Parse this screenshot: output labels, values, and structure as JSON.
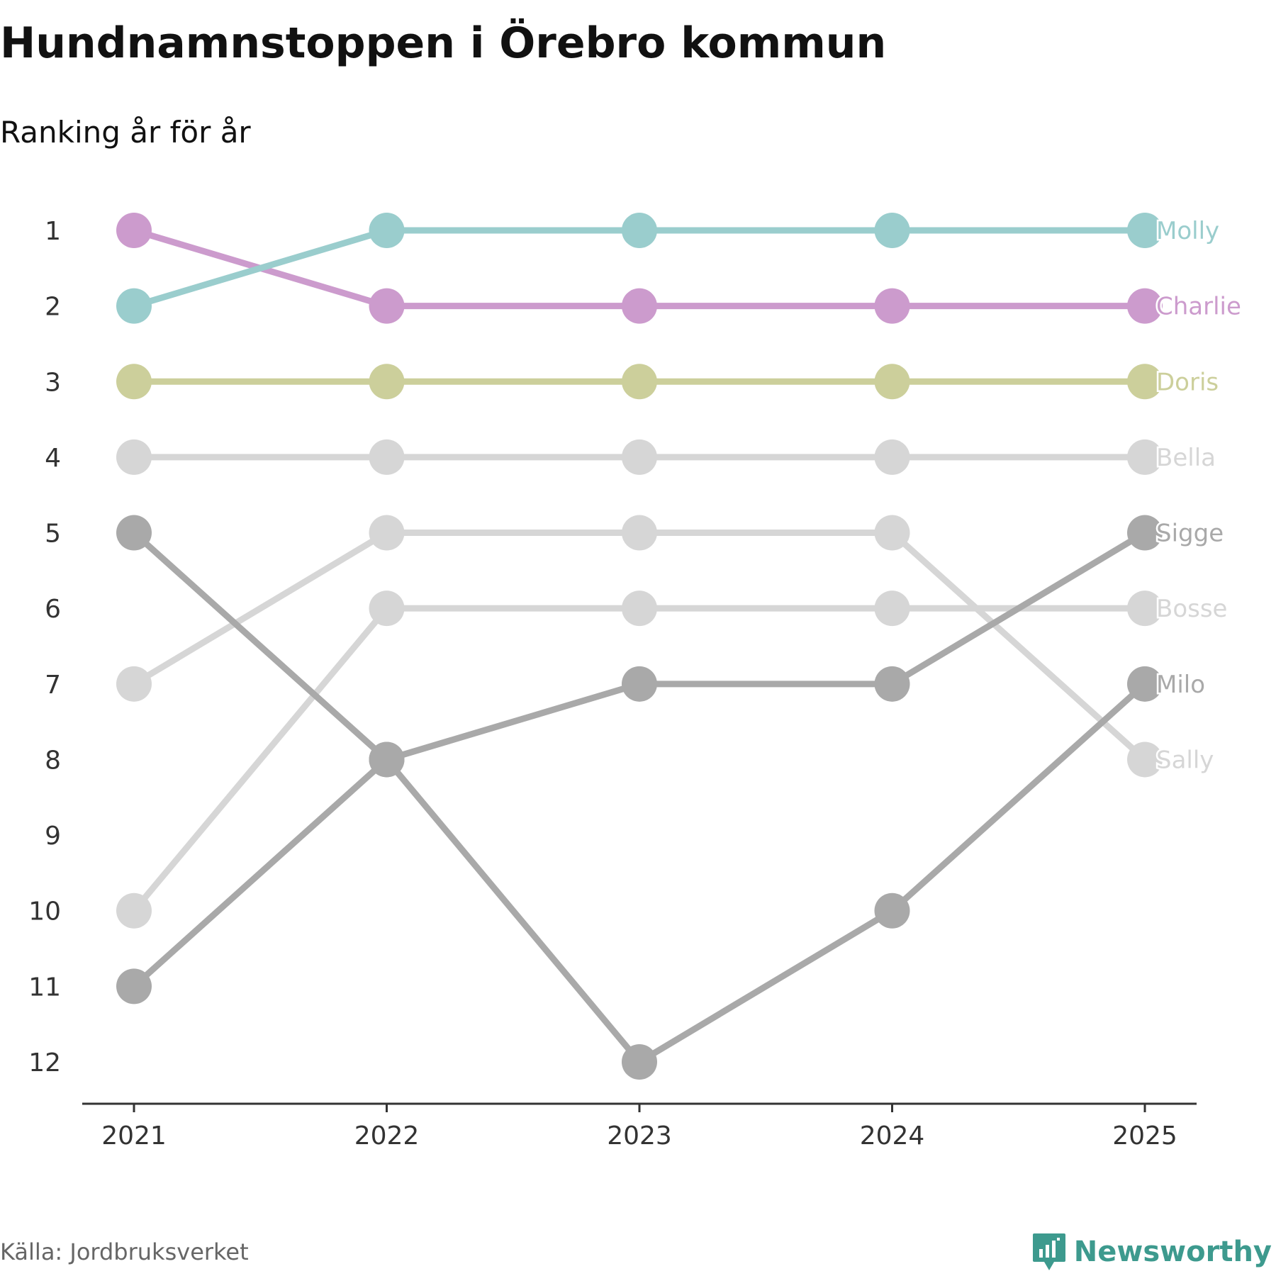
{
  "title": "Hundnamnstoppen i Örebro kommun",
  "subtitle": "Ranking år för år",
  "source": "Källa: Jordbruksverket",
  "brand": {
    "name": "Newsworthy",
    "icon": "newsworthy-logo-icon",
    "color": "#3d9a8e"
  },
  "chart_data": {
    "type": "line",
    "title": "Hundnamnstoppen i Örebro kommun",
    "subtitle": "Ranking år för år",
    "xlabel": "",
    "ylabel": "",
    "x": [
      "2021",
      "2022",
      "2023",
      "2024",
      "2025"
    ],
    "ylim": [
      1,
      12
    ],
    "y_reversed": true,
    "y_ticks": [
      1,
      2,
      3,
      4,
      5,
      6,
      7,
      8,
      9,
      10,
      11,
      12
    ],
    "series": [
      {
        "name": "Bella",
        "color": "#d6d6d6",
        "values": [
          4,
          4,
          4,
          4,
          4
        ]
      },
      {
        "name": "Bosse",
        "color": "#d6d6d6",
        "values": [
          10,
          6,
          6,
          6,
          6
        ]
      },
      {
        "name": "Sally",
        "color": "#d6d6d6",
        "values": [
          7,
          5,
          5,
          5,
          8
        ]
      },
      {
        "name": "Sigge",
        "color": "#a9a9a9",
        "values": [
          11,
          8,
          7,
          7,
          5
        ]
      },
      {
        "name": "Milo",
        "color": "#a9a9a9",
        "values": [
          5,
          8,
          12,
          10,
          7
        ]
      },
      {
        "name": "Doris",
        "color": "#cccf9b",
        "values": [
          3,
          3,
          3,
          3,
          3
        ]
      },
      {
        "name": "Charlie",
        "color": "#cc9bcd",
        "values": [
          1,
          2,
          2,
          2,
          2
        ]
      },
      {
        "name": "Molly",
        "color": "#9acdcd",
        "values": [
          2,
          1,
          1,
          1,
          1
        ]
      }
    ]
  }
}
